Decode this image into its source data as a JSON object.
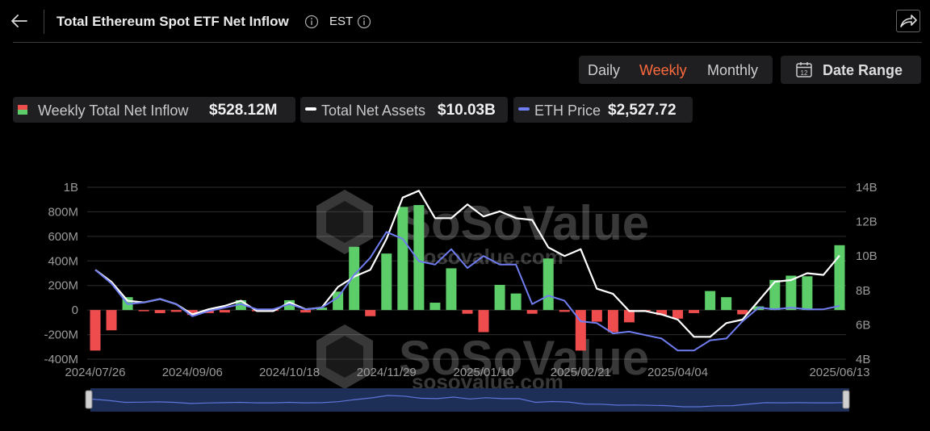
{
  "header": {
    "title": "Total Ethereum Spot ETF Net Inflow",
    "timezone": "EST"
  },
  "controls": {
    "periods": [
      {
        "label": "Daily",
        "active": false
      },
      {
        "label": "Weekly",
        "active": true
      },
      {
        "label": "Monthly",
        "active": false
      }
    ],
    "date_range_label": "Date Range",
    "calendar_day": "12"
  },
  "legend": [
    {
      "name": "Weekly Total Net Inflow",
      "value": "$528.12M",
      "color": "#5ccd69"
    },
    {
      "name": "Total Net Assets",
      "value": "$10.03B",
      "color": "#ffffff"
    },
    {
      "name": "ETH Price",
      "value": "$2,527.72",
      "color": "#6f7df0"
    }
  ],
  "watermark": {
    "brand": "SoSoValue",
    "url": "sosovalue.com"
  },
  "colors": {
    "positive": "#5ccd69",
    "negative": "#ef4d4d",
    "net_assets": "#ffffff",
    "eth_price": "#6f7df0",
    "grid": "#2e2e2e",
    "navigator": "#1e2f57"
  },
  "chart_data": {
    "type": "bar",
    "x": [
      "2024-07-26",
      "2024-08-02",
      "2024-08-09",
      "2024-08-16",
      "2024-08-23",
      "2024-08-30",
      "2024-09-06",
      "2024-09-13",
      "2024-09-20",
      "2024-09-27",
      "2024-10-04",
      "2024-10-11",
      "2024-10-18",
      "2024-10-25",
      "2024-11-01",
      "2024-11-08",
      "2024-11-15",
      "2024-11-22",
      "2024-11-29",
      "2024-12-06",
      "2024-12-13",
      "2024-12-20",
      "2024-12-27",
      "2025-01-03",
      "2025-01-10",
      "2025-01-17",
      "2025-01-24",
      "2025-01-31",
      "2025-02-07",
      "2025-02-14",
      "2025-02-21",
      "2025-02-28",
      "2025-03-07",
      "2025-03-14",
      "2025-03-21",
      "2025-03-28",
      "2025-04-04",
      "2025-04-11",
      "2025-04-18",
      "2025-04-25",
      "2025-05-02",
      "2025-05-09",
      "2025-05-16",
      "2025-05-23",
      "2025-05-30",
      "2025-06-06",
      "2025-06-13"
    ],
    "x_tick_labels": [
      "2024/07/26",
      "2024/09/06",
      "2024/10/18",
      "2024/11/29",
      "2025/01/10",
      "2025/02/21",
      "2025/04/04",
      "2025/06/13"
    ],
    "series": [
      {
        "name": "Weekly Total Net Inflow",
        "axis": "left",
        "type": "bar",
        "values": [
          -330000000,
          -165000000,
          105000000,
          -10000000,
          -25000000,
          -15000000,
          -40000000,
          -25000000,
          -20000000,
          80000000,
          -10000000,
          -5000000,
          80000000,
          -20000000,
          20000000,
          150000000,
          515000000,
          -50000000,
          460000000,
          840000000,
          855000000,
          60000000,
          340000000,
          -30000000,
          -180000000,
          205000000,
          135000000,
          -30000000,
          420000000,
          -15000000,
          -330000000,
          -95000000,
          -180000000,
          -100000000,
          -5000000,
          -40000000,
          -70000000,
          -25000000,
          155000000,
          105000000,
          -35000000,
          30000000,
          245000000,
          280000000,
          275000000,
          0,
          528120000
        ]
      },
      {
        "name": "Total Net Assets",
        "axis": "right",
        "type": "line",
        "values": [
          9.2,
          8.5,
          7.4,
          7.3,
          7.5,
          7.2,
          6.6,
          6.9,
          7.1,
          7.4,
          6.8,
          6.8,
          7.3,
          6.9,
          7.0,
          8.2,
          8.8,
          9.2,
          11.0,
          13.4,
          13.8,
          12.2,
          12.2,
          13.0,
          12.3,
          12.6,
          12.2,
          12.1,
          10.5,
          10.0,
          10.4,
          8.1,
          7.8,
          6.8,
          6.8,
          6.6,
          6.3,
          5.3,
          5.3,
          6.1,
          6.3,
          7.4,
          8.5,
          8.6,
          9.0,
          8.9,
          10.03
        ]
      },
      {
        "name": "ETH Price",
        "axis": "right",
        "type": "line",
        "values": [
          9.2,
          8.4,
          7.2,
          7.3,
          7.5,
          7.2,
          6.5,
          6.8,
          7.0,
          7.2,
          6.9,
          6.9,
          7.2,
          6.9,
          7.0,
          7.6,
          8.9,
          9.9,
          11.4,
          11.0,
          9.7,
          9.5,
          10.4,
          9.3,
          10.0,
          9.5,
          9.5,
          7.2,
          7.7,
          7.4,
          6.2,
          6.1,
          5.5,
          5.6,
          5.4,
          5.2,
          4.5,
          4.5,
          5.1,
          5.2,
          6.2,
          7.0,
          6.9,
          7.0,
          6.9,
          6.9,
          7.1
        ]
      }
    ],
    "y_left": {
      "ticks": [
        "-400M",
        "-200M",
        "0",
        "200M",
        "400M",
        "600M",
        "800M",
        "1B"
      ],
      "ylim": [
        -400000000,
        1000000000
      ]
    },
    "y_right": {
      "ticks": [
        "4B",
        "6B",
        "8B",
        "10B",
        "12B",
        "14B"
      ],
      "ylim": [
        4,
        14
      ]
    },
    "grid": true,
    "legend_placement": "top-left"
  }
}
